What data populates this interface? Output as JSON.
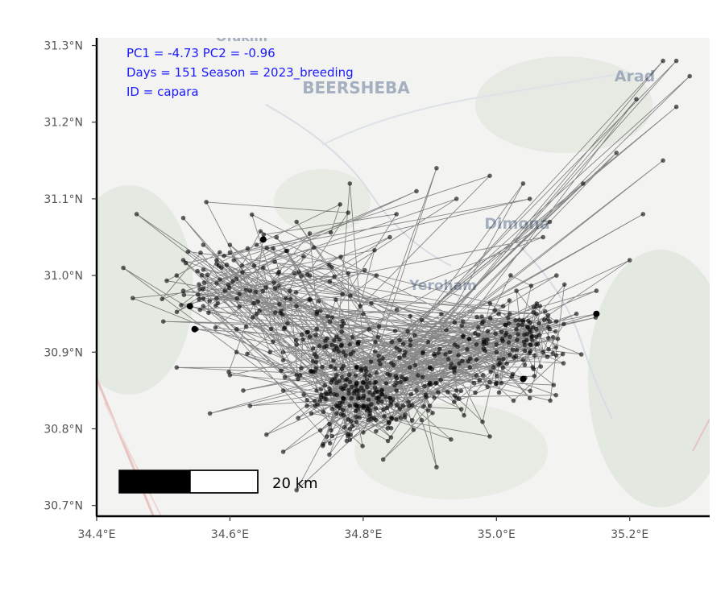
{
  "map": {
    "annotations": {
      "line1": "PC1 = -4.73  PC2 = -0.96",
      "line2": "Days = 151  Season = 2023_breeding",
      "line3": "ID = capara"
    },
    "place_labels": [
      "Ofakim",
      "BEERSHEBA",
      "Arad",
      "Dimona",
      "Yeroham"
    ],
    "scale_bar": {
      "label": "20 km",
      "length_km": 20
    },
    "annotation_color": "#1a1aff",
    "track_color": "#000000",
    "extent": {
      "lon": [
        34.4,
        35.32
      ],
      "lat": [
        30.686,
        31.31
      ]
    }
  },
  "axes": {
    "x_ticks": [
      "34.4°E",
      "34.6°E",
      "34.8°E",
      "35.0°E",
      "35.2°E"
    ],
    "x_tick_values": [
      34.4,
      34.6,
      34.8,
      35.0,
      35.2
    ],
    "y_ticks": [
      "31.3°N",
      "31.2°N",
      "31.1°N",
      "31.0°N",
      "30.9°N",
      "30.8°N",
      "30.7°N"
    ],
    "y_tick_values": [
      31.3,
      31.2,
      31.1,
      31.0,
      30.9,
      30.8,
      30.7
    ]
  },
  "track": {
    "points": [
      [
        34.79,
        30.83
      ],
      [
        34.72,
        30.92
      ],
      [
        34.58,
        30.99
      ],
      [
        34.52,
        31.0
      ],
      [
        34.44,
        31.01
      ],
      [
        34.46,
        31.08
      ],
      [
        34.53,
        31.075
      ],
      [
        34.67,
        31.05
      ],
      [
        34.63,
        30.98
      ],
      [
        34.7,
        30.96
      ],
      [
        34.79,
        30.86
      ],
      [
        34.9,
        30.88
      ],
      [
        35.0,
        30.9
      ],
      [
        35.06,
        30.93
      ],
      [
        35.09,
        31.0
      ],
      [
        35.08,
        31.07
      ],
      [
        35.04,
        31.12
      ],
      [
        34.91,
        31.14
      ],
      [
        34.78,
        31.12
      ],
      [
        34.7,
        31.07
      ],
      [
        34.6,
        31.04
      ],
      [
        34.56,
        30.96
      ],
      [
        34.61,
        30.9
      ],
      [
        34.68,
        30.85
      ],
      [
        34.76,
        30.82
      ],
      [
        34.84,
        30.84
      ],
      [
        34.97,
        30.87
      ],
      [
        35.06,
        30.92
      ],
      [
        35.12,
        30.95
      ],
      [
        35.15,
        30.98
      ],
      [
        35.13,
        31.12
      ],
      [
        35.18,
        31.16
      ],
      [
        35.21,
        31.23
      ],
      [
        35.25,
        31.28
      ],
      [
        35.27,
        31.28
      ],
      [
        35.29,
        31.26
      ],
      [
        35.27,
        31.22
      ],
      [
        35.25,
        31.15
      ],
      [
        35.22,
        31.08
      ],
      [
        35.2,
        31.02
      ],
      [
        35.15,
        30.95
      ],
      [
        35.06,
        30.91
      ],
      [
        34.98,
        30.87
      ],
      [
        34.88,
        30.85
      ],
      [
        34.8,
        30.83
      ],
      [
        34.74,
        30.78
      ],
      [
        34.7,
        30.72
      ],
      [
        34.68,
        30.77
      ],
      [
        34.63,
        30.83
      ],
      [
        34.6,
        30.87
      ],
      [
        34.55,
        30.93
      ],
      [
        34.54,
        30.96
      ],
      [
        34.58,
        31.02
      ],
      [
        34.64,
        31.04
      ],
      [
        34.72,
        31.0
      ],
      [
        34.75,
        30.94
      ],
      [
        34.79,
        30.88
      ],
      [
        34.82,
        30.84
      ],
      [
        34.9,
        30.83
      ],
      [
        35.0,
        30.86
      ],
      [
        35.04,
        30.89
      ],
      [
        35.08,
        30.94
      ],
      [
        35.02,
        30.95
      ],
      [
        34.95,
        30.92
      ],
      [
        34.87,
        30.88
      ],
      [
        34.8,
        30.84
      ],
      [
        34.78,
        30.8
      ],
      [
        34.83,
        30.76
      ],
      [
        34.91,
        30.75
      ],
      [
        34.99,
        30.79
      ],
      [
        35.05,
        30.84
      ],
      [
        35.07,
        30.9
      ],
      [
        35.03,
        30.93
      ],
      [
        34.97,
        30.91
      ],
      [
        34.9,
        30.88
      ],
      [
        34.82,
        30.85
      ],
      [
        34.76,
        30.87
      ],
      [
        34.7,
        30.91
      ],
      [
        34.64,
        30.95
      ],
      [
        34.58,
        30.97
      ],
      [
        34.53,
        30.98
      ],
      [
        34.5,
        30.94
      ],
      [
        34.52,
        30.88
      ],
      [
        34.57,
        30.82
      ],
      [
        34.62,
        30.85
      ],
      [
        34.68,
        30.9
      ],
      [
        34.73,
        30.93
      ],
      [
        34.77,
        30.9
      ],
      [
        34.8,
        30.86
      ],
      [
        34.85,
        30.86
      ],
      [
        34.93,
        30.9
      ],
      [
        34.98,
        30.94
      ],
      [
        35.03,
        30.98
      ],
      [
        35.07,
        31.05
      ],
      [
        35.05,
        31.1
      ],
      [
        34.99,
        31.13
      ],
      [
        34.94,
        31.1
      ],
      [
        34.88,
        31.11
      ],
      [
        34.85,
        31.08
      ],
      [
        34.84,
        31.05
      ],
      [
        34.82,
        31.0
      ],
      [
        34.8,
        30.95
      ],
      [
        34.78,
        30.91
      ],
      [
        34.76,
        30.86
      ],
      [
        34.78,
        30.83
      ],
      [
        34.81,
        30.82
      ],
      [
        34.86,
        30.83
      ],
      [
        34.94,
        30.85
      ],
      [
        35.01,
        30.88
      ],
      [
        35.05,
        30.91
      ],
      [
        35.08,
        30.93
      ],
      [
        35.06,
        30.95
      ],
      [
        35.01,
        30.96
      ],
      [
        34.95,
        30.94
      ],
      [
        34.89,
        30.9
      ],
      [
        34.84,
        30.87
      ],
      [
        34.8,
        30.85
      ],
      [
        34.77,
        30.84
      ],
      [
        34.73,
        30.85
      ],
      [
        34.7,
        30.87
      ],
      [
        34.66,
        30.9
      ],
      [
        34.61,
        30.93
      ],
      [
        34.56,
        30.97
      ],
      [
        34.53,
        31.02
      ],
      [
        34.56,
        31.04
      ],
      [
        34.6,
        31.03
      ],
      [
        34.65,
        31.01
      ],
      [
        34.69,
        30.98
      ],
      [
        34.73,
        30.95
      ],
      [
        34.76,
        30.92
      ],
      [
        34.79,
        30.88
      ],
      [
        34.81,
        30.86
      ],
      [
        34.85,
        30.85
      ],
      [
        34.91,
        30.86
      ],
      [
        34.96,
        30.88
      ],
      [
        35.0,
        30.91
      ],
      [
        35.04,
        30.94
      ],
      [
        35.06,
        30.96
      ],
      [
        35.02,
        30.92
      ],
      [
        34.97,
        30.89
      ],
      [
        34.9,
        30.86
      ],
      [
        34.84,
        30.84
      ],
      [
        34.79,
        30.83
      ]
    ],
    "hotspots": [
      {
        "lon": 34.79,
        "lat": 30.835,
        "spread_lon": 0.045,
        "spread_lat": 0.025,
        "count": 170
      },
      {
        "lon": 34.94,
        "lat": 30.88,
        "spread_lon": 0.07,
        "spread_lat": 0.035,
        "count": 110
      },
      {
        "lon": 35.04,
        "lat": 30.92,
        "spread_lon": 0.04,
        "spread_lat": 0.03,
        "count": 90
      },
      {
        "lon": 34.64,
        "lat": 30.99,
        "spread_lon": 0.07,
        "spread_lat": 0.04,
        "count": 110
      },
      {
        "lon": 34.75,
        "lat": 30.9,
        "spread_lon": 0.04,
        "spread_lat": 0.04,
        "count": 60
      }
    ],
    "highlight_points": [
      [
        34.54,
        30.96
      ],
      [
        34.547,
        30.93
      ],
      [
        35.15,
        30.95
      ],
      [
        35.04,
        30.865
      ],
      [
        34.65,
        31.047
      ]
    ]
  }
}
